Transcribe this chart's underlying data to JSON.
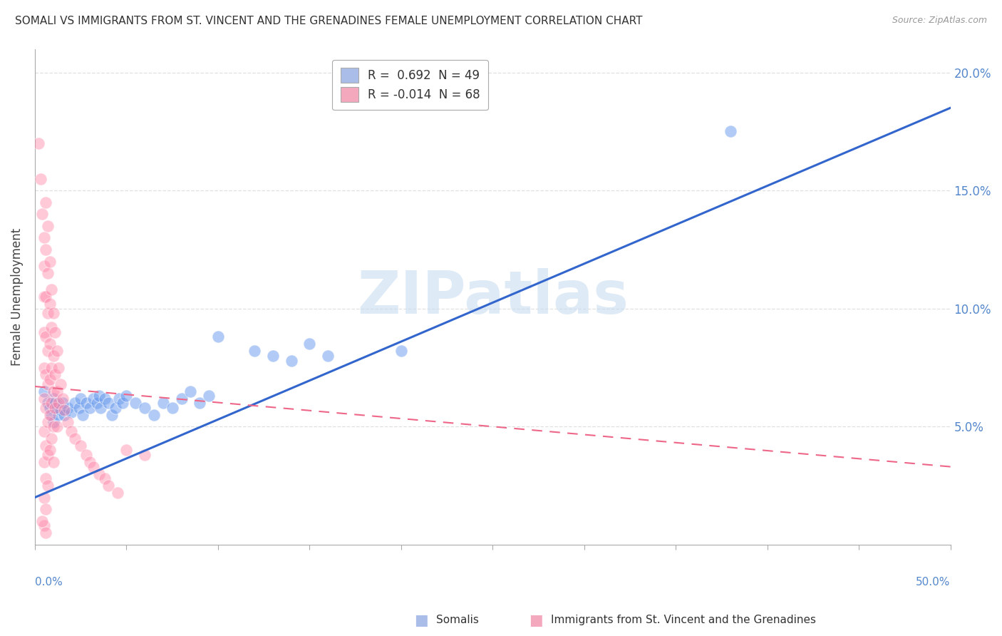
{
  "title": "SOMALI VS IMMIGRANTS FROM ST. VINCENT AND THE GRENADINES FEMALE UNEMPLOYMENT CORRELATION CHART",
  "source": "Source: ZipAtlas.com",
  "ylabel": "Female Unemployment",
  "xmin": 0.0,
  "xmax": 0.5,
  "ymin": 0.0,
  "ymax": 0.21,
  "yticks": [
    0.05,
    0.1,
    0.15,
    0.2
  ],
  "ytick_labels": [
    "5.0%",
    "10.0%",
    "15.0%",
    "20.0%"
  ],
  "somali_color": "#6699ee",
  "svg_color": "#ff88aa",
  "watermark_color": "#c8ddf0",
  "background_color": "#ffffff",
  "grid_color": "#dddddd",
  "somali_trend": [
    0.02,
    0.185
  ],
  "svg_trend_start": 0.067,
  "svg_trend_end": 0.033,
  "somali_scatter": [
    [
      0.005,
      0.065
    ],
    [
      0.007,
      0.06
    ],
    [
      0.008,
      0.058
    ],
    [
      0.009,
      0.055
    ],
    [
      0.01,
      0.052
    ],
    [
      0.01,
      0.062
    ],
    [
      0.011,
      0.06
    ],
    [
      0.012,
      0.058
    ],
    [
      0.013,
      0.055
    ],
    [
      0.014,
      0.057
    ],
    [
      0.015,
      0.06
    ],
    [
      0.016,
      0.055
    ],
    [
      0.018,
      0.058
    ],
    [
      0.02,
      0.056
    ],
    [
      0.022,
      0.06
    ],
    [
      0.024,
      0.058
    ],
    [
      0.025,
      0.062
    ],
    [
      0.026,
      0.055
    ],
    [
      0.028,
      0.06
    ],
    [
      0.03,
      0.058
    ],
    [
      0.032,
      0.062
    ],
    [
      0.034,
      0.06
    ],
    [
      0.035,
      0.063
    ],
    [
      0.036,
      0.058
    ],
    [
      0.038,
      0.062
    ],
    [
      0.04,
      0.06
    ],
    [
      0.042,
      0.055
    ],
    [
      0.044,
      0.058
    ],
    [
      0.046,
      0.062
    ],
    [
      0.048,
      0.06
    ],
    [
      0.05,
      0.063
    ],
    [
      0.055,
      0.06
    ],
    [
      0.06,
      0.058
    ],
    [
      0.065,
      0.055
    ],
    [
      0.07,
      0.06
    ],
    [
      0.075,
      0.058
    ],
    [
      0.08,
      0.062
    ],
    [
      0.085,
      0.065
    ],
    [
      0.09,
      0.06
    ],
    [
      0.095,
      0.063
    ],
    [
      0.1,
      0.088
    ],
    [
      0.12,
      0.082
    ],
    [
      0.13,
      0.08
    ],
    [
      0.14,
      0.078
    ],
    [
      0.15,
      0.085
    ],
    [
      0.16,
      0.08
    ],
    [
      0.2,
      0.082
    ],
    [
      0.38,
      0.175
    ]
  ],
  "svg_scatter": [
    [
      0.002,
      0.17
    ],
    [
      0.003,
      0.155
    ],
    [
      0.004,
      0.14
    ],
    [
      0.005,
      0.13
    ],
    [
      0.005,
      0.118
    ],
    [
      0.005,
      0.105
    ],
    [
      0.005,
      0.09
    ],
    [
      0.005,
      0.075
    ],
    [
      0.005,
      0.062
    ],
    [
      0.005,
      0.048
    ],
    [
      0.005,
      0.035
    ],
    [
      0.005,
      0.02
    ],
    [
      0.005,
      0.008
    ],
    [
      0.006,
      0.145
    ],
    [
      0.006,
      0.125
    ],
    [
      0.006,
      0.105
    ],
    [
      0.006,
      0.088
    ],
    [
      0.006,
      0.072
    ],
    [
      0.006,
      0.058
    ],
    [
      0.006,
      0.042
    ],
    [
      0.006,
      0.028
    ],
    [
      0.006,
      0.015
    ],
    [
      0.007,
      0.135
    ],
    [
      0.007,
      0.115
    ],
    [
      0.007,
      0.098
    ],
    [
      0.007,
      0.082
    ],
    [
      0.007,
      0.068
    ],
    [
      0.007,
      0.052
    ],
    [
      0.007,
      0.038
    ],
    [
      0.007,
      0.025
    ],
    [
      0.008,
      0.12
    ],
    [
      0.008,
      0.102
    ],
    [
      0.008,
      0.085
    ],
    [
      0.008,
      0.07
    ],
    [
      0.008,
      0.055
    ],
    [
      0.008,
      0.04
    ],
    [
      0.009,
      0.108
    ],
    [
      0.009,
      0.092
    ],
    [
      0.009,
      0.075
    ],
    [
      0.009,
      0.06
    ],
    [
      0.009,
      0.045
    ],
    [
      0.01,
      0.098
    ],
    [
      0.01,
      0.08
    ],
    [
      0.01,
      0.065
    ],
    [
      0.01,
      0.05
    ],
    [
      0.01,
      0.035
    ],
    [
      0.011,
      0.09
    ],
    [
      0.011,
      0.072
    ],
    [
      0.011,
      0.058
    ],
    [
      0.012,
      0.082
    ],
    [
      0.012,
      0.065
    ],
    [
      0.012,
      0.05
    ],
    [
      0.013,
      0.075
    ],
    [
      0.013,
      0.06
    ],
    [
      0.014,
      0.068
    ],
    [
      0.015,
      0.062
    ],
    [
      0.016,
      0.057
    ],
    [
      0.018,
      0.052
    ],
    [
      0.02,
      0.048
    ],
    [
      0.022,
      0.045
    ],
    [
      0.025,
      0.042
    ],
    [
      0.028,
      0.038
    ],
    [
      0.03,
      0.035
    ],
    [
      0.032,
      0.033
    ],
    [
      0.035,
      0.03
    ],
    [
      0.038,
      0.028
    ],
    [
      0.04,
      0.025
    ],
    [
      0.045,
      0.022
    ],
    [
      0.05,
      0.04
    ],
    [
      0.06,
      0.038
    ],
    [
      0.004,
      0.01
    ],
    [
      0.006,
      0.005
    ]
  ]
}
